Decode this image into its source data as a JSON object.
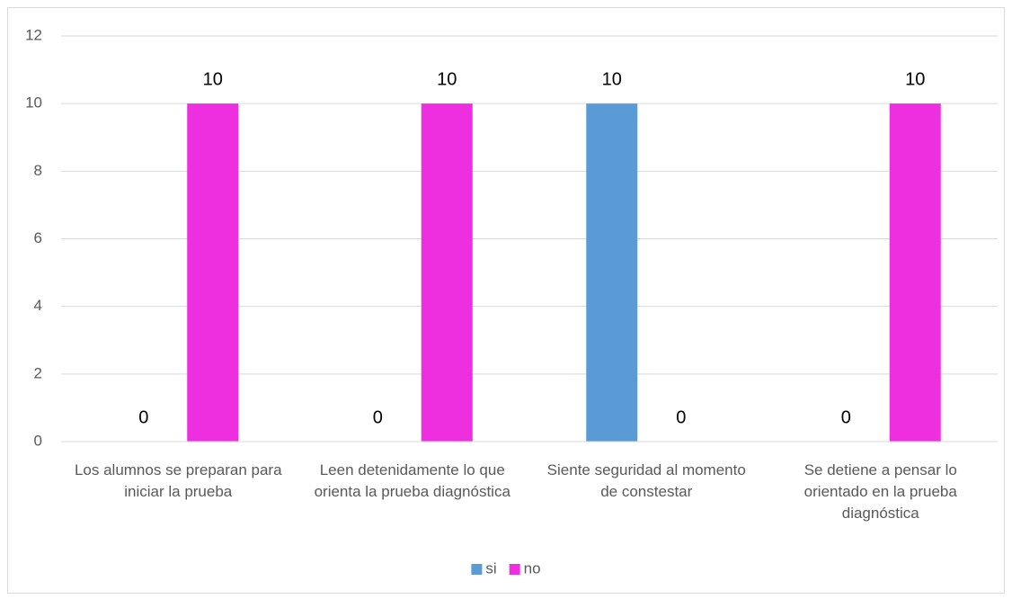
{
  "chart_data": {
    "type": "bar",
    "categories": [
      "Los alumnos se preparan para iniciar la prueba",
      "Leen detenidamente lo que orienta la prueba diagnóstica",
      "Siente seguridad al momento de constestar",
      "Se detiene a pensar lo orientado en la prueba diagnóstica"
    ],
    "series": [
      {
        "name": "si",
        "color": "#5b9bd5",
        "values": [
          0,
          0,
          10,
          0
        ]
      },
      {
        "name": "no",
        "color": "#ee2fe0",
        "values": [
          10,
          10,
          0,
          10
        ]
      }
    ],
    "ylim": [
      0,
      12
    ],
    "yticks": [
      0,
      2,
      4,
      6,
      8,
      10,
      12
    ],
    "grid": true,
    "legend": "bottom"
  }
}
